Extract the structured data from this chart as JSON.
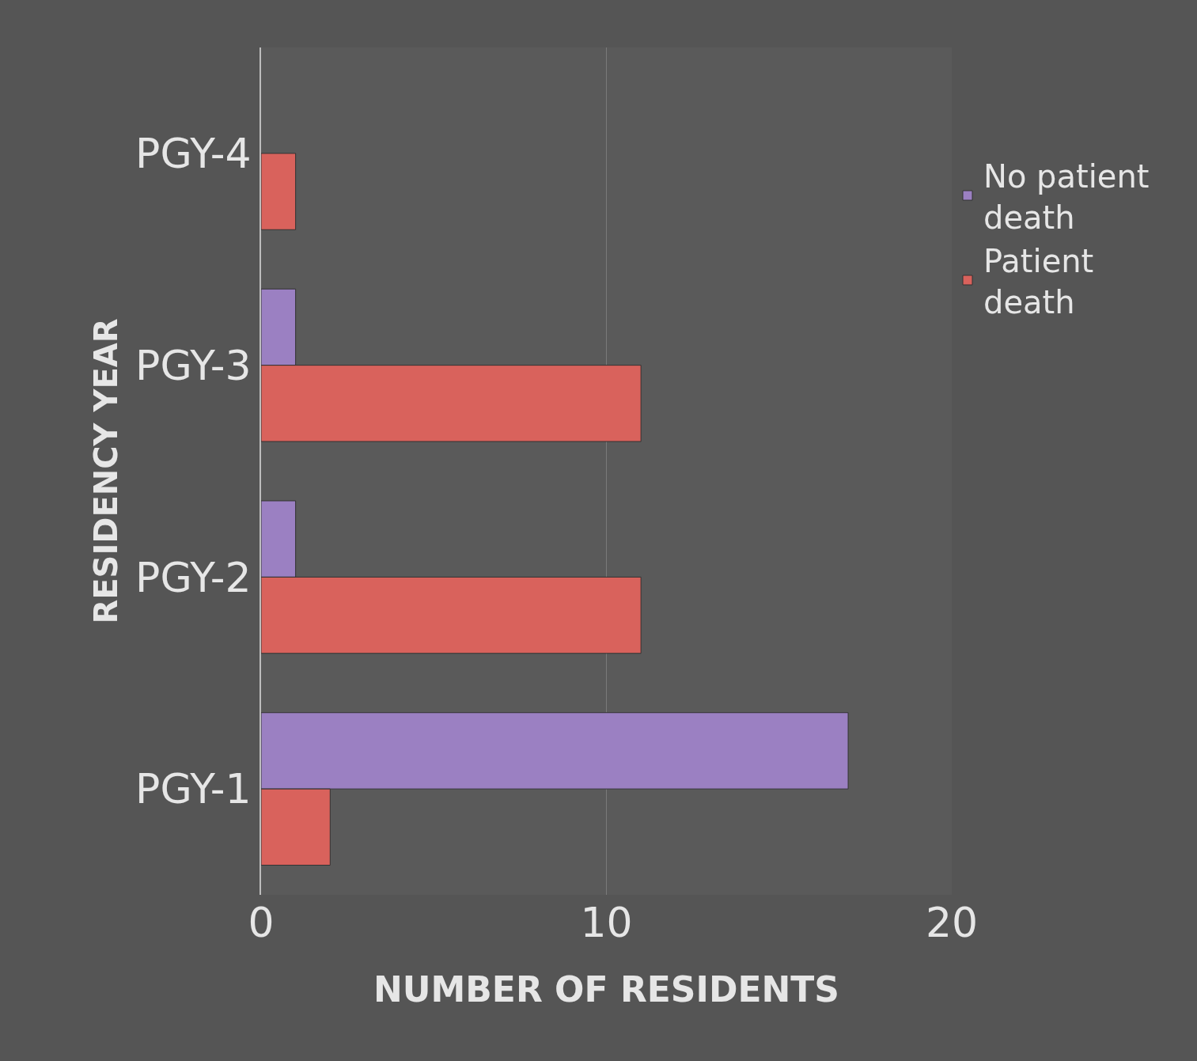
{
  "chart_data": {
    "type": "bar",
    "orientation": "horizontal",
    "categories": [
      "PGY-4",
      "PGY-3",
      "PGY-2",
      "PGY-1"
    ],
    "series": [
      {
        "name": "No patient death",
        "color": "#9b80c2",
        "values": [
          null,
          1,
          1,
          17
        ]
      },
      {
        "name": "Patient death",
        "color": "#d9625c",
        "values": [
          1,
          11,
          11,
          2
        ]
      }
    ],
    "xlabel": "NUMBER OF RESIDENTS",
    "ylabel": "RESIDENCY YEAR",
    "xlim": [
      0,
      20
    ],
    "xticks": [
      0,
      10,
      20
    ],
    "grid": "x",
    "legend": "right"
  }
}
